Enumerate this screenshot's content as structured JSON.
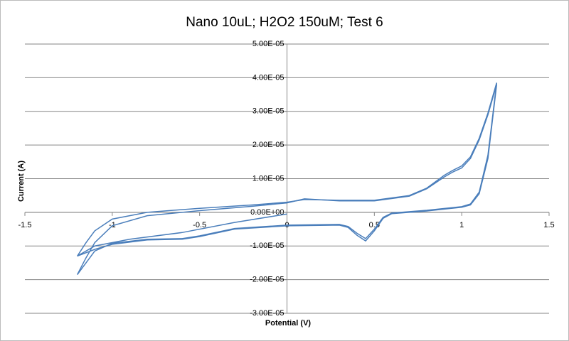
{
  "chart_data": {
    "type": "line",
    "title": "Nano 10uL; H2O2 150uM; Test 6",
    "x_label": "Potential (V)",
    "y_label": "Current (A)",
    "xlim": [
      -1.5,
      1.5
    ],
    "xticks": [
      -1.5,
      -1,
      -0.5,
      0,
      0.5,
      1,
      1.5
    ],
    "ylim": [
      -3e-05,
      5e-05
    ],
    "yticks": [
      {
        "value": -3e-05,
        "label": "-3.00E-05"
      },
      {
        "value": -2e-05,
        "label": "-2.00E-05"
      },
      {
        "value": -1e-05,
        "label": "-1.00E-05"
      },
      {
        "value": 0,
        "label": "0.00E+00"
      },
      {
        "value": 1e-05,
        "label": "1.00E-05"
      },
      {
        "value": 2e-05,
        "label": "2.00E-05"
      },
      {
        "value": 3e-05,
        "label": "3.00E-05"
      },
      {
        "value": 4e-05,
        "label": "4.00E-05"
      },
      {
        "value": 5e-05,
        "label": "5.00E-05"
      }
    ],
    "grid": true,
    "series": [
      {
        "color": "#4a7ebb",
        "x": [
          0,
          -0.3,
          -0.6,
          -0.9,
          -1.1,
          -1.2,
          -1.15,
          -1.1,
          -1.0,
          -0.8,
          -0.5,
          -0.2,
          0,
          0.1,
          0.3,
          0.5,
          0.7,
          0.8,
          0.9,
          0.95,
          1.0,
          1.05,
          1.1,
          1.15,
          1.2,
          1.15,
          1.1,
          1.05,
          1.0,
          0.8,
          0.6,
          0.55,
          0.5,
          0.45,
          0.4,
          0.35,
          0.3,
          0,
          -0.3,
          -0.5,
          -0.6,
          -0.8,
          -1.0,
          -1.1,
          -1.2
        ],
        "values": [
          -5e-07,
          -3e-06,
          -6e-06,
          -8e-06,
          -1e-05,
          -1.3e-05,
          -9e-06,
          -5.5e-06,
          -2e-06,
          0,
          1.2e-06,
          2.2e-06,
          3e-06,
          3.8e-06,
          3.6e-06,
          3.6e-06,
          5e-06,
          7.2e-06,
          1.1e-05,
          1.25e-05,
          1.38e-05,
          1.65e-05,
          2.2e-05,
          2.95e-05,
          3.85e-05,
          1.7e-05,
          6e-06,
          2.5e-06,
          1.7e-06,
          6e-07,
          -2e-07,
          -1.5e-06,
          -5e-06,
          -7.8e-06,
          -6.2e-06,
          -4.2e-06,
          -3.6e-06,
          -3.8e-06,
          -4.8e-06,
          -7e-06,
          -7.8e-06,
          -8e-06,
          -9.2e-06,
          -1.15e-05,
          -1.85e-05
        ]
      },
      {
        "color": "#4a7ebb",
        "x": [
          -1.2,
          -1.15,
          -1.1,
          -1.0,
          -0.8,
          -0.5,
          -0.2,
          0,
          0.1,
          0.3,
          0.5,
          0.7,
          0.8,
          0.9,
          0.95,
          1.0,
          1.05,
          1.1,
          1.15,
          1.2,
          1.15,
          1.1,
          1.05,
          1.0,
          0.8,
          0.6,
          0.55,
          0.5,
          0.45,
          0.4,
          0.35,
          0.3,
          0,
          -0.3,
          -0.5,
          -0.6,
          -0.8,
          -1.0,
          -1.1,
          -1.2
        ],
        "values": [
          -1.85e-05,
          -1.35e-05,
          -9e-06,
          -4e-06,
          -1e-06,
          5e-07,
          1.8e-06,
          2.8e-06,
          4e-06,
          3.4e-06,
          3.4e-06,
          4.8e-06,
          7e-06,
          1.05e-05,
          1.2e-05,
          1.32e-05,
          1.6e-05,
          2.15e-05,
          2.9e-05,
          3.8e-05,
          1.6e-05,
          5.5e-06,
          2.2e-06,
          1.5e-06,
          4e-07,
          -4e-07,
          -1.8e-06,
          -5.5e-06,
          -8.5e-06,
          -6.8e-06,
          -4.5e-06,
          -3.8e-06,
          -4e-06,
          -5e-06,
          -7.2e-06,
          -8e-06,
          -8.2e-06,
          -9.5e-06,
          -1.1e-05,
          -1.3e-05
        ]
      }
    ]
  }
}
